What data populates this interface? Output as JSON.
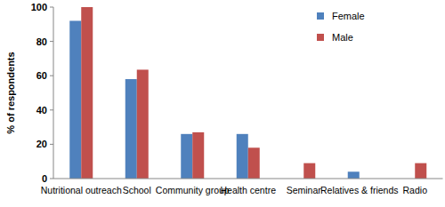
{
  "chart_data": {
    "type": "bar",
    "y_label": "% of respondents",
    "categories": [
      "Nutritional outreach",
      "School",
      "Community group",
      "Health centre",
      "Seminar",
      "Relatives & friends",
      "Radio"
    ],
    "series": [
      {
        "name": "Female",
        "color": "#4f81bd",
        "values": [
          92,
          58,
          26,
          26,
          0,
          4,
          0
        ]
      },
      {
        "name": "Male",
        "color": "#c0504d",
        "values": [
          100,
          63.5,
          27,
          18,
          9,
          0,
          9
        ]
      }
    ],
    "ylim": [
      0,
      100
    ],
    "yticks": [
      0,
      20,
      40,
      60,
      80,
      100
    ],
    "grid": false,
    "legend": "upper right"
  }
}
